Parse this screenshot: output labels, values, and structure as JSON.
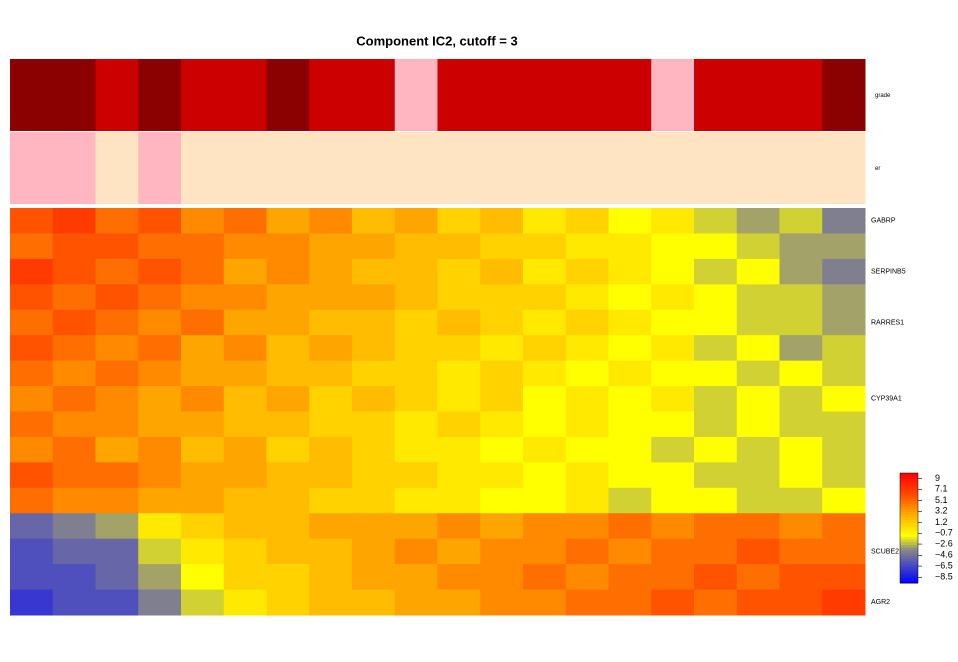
{
  "chart_data": {
    "type": "heatmap",
    "title": "Component IC2, cutoff = 3",
    "annotations": [
      {
        "name": "grade",
        "values": [
          3,
          3,
          2,
          3,
          2,
          2,
          3,
          2,
          2,
          1,
          2,
          2,
          2,
          2,
          2,
          1,
          2,
          2,
          2,
          3
        ],
        "colors": {
          "1": "#ffb6c1",
          "2": "#cd0000",
          "3": "#8b0000"
        }
      },
      {
        "name": "er",
        "values": [
          1,
          1,
          0,
          1,
          0,
          0,
          0,
          0,
          0,
          0,
          0,
          0,
          0,
          0,
          0,
          0,
          0,
          0,
          0,
          0
        ],
        "colors": {
          "0": "#ffe4c4",
          "1": "#ffb6c1"
        }
      }
    ],
    "row_labels": [
      "GABRP",
      null,
      "SERPINB5",
      null,
      "RARRES1",
      null,
      null,
      "CYP39A1",
      null,
      null,
      null,
      null,
      null,
      "SCUBE2",
      null,
      "AGR2"
    ],
    "values": [
      [
        6,
        7,
        5,
        6,
        4,
        5,
        3,
        4,
        2,
        3,
        1,
        2,
        0,
        1,
        -1,
        0,
        -2,
        -3,
        -2,
        -4
      ],
      [
        5,
        6,
        6,
        5,
        5,
        4,
        4,
        3,
        3,
        2,
        2,
        1,
        1,
        0,
        0,
        -1,
        -1,
        -2,
        -3,
        -3
      ],
      [
        7,
        6,
        5,
        6,
        5,
        3,
        4,
        3,
        2,
        2,
        1,
        2,
        0,
        1,
        0,
        -1,
        -2,
        -1,
        -3,
        -4
      ],
      [
        6,
        5,
        6,
        5,
        4,
        4,
        3,
        3,
        3,
        2,
        1,
        1,
        1,
        0,
        -1,
        0,
        -1,
        -2,
        -2,
        -3
      ],
      [
        5,
        6,
        5,
        4,
        5,
        3,
        3,
        2,
        2,
        1,
        2,
        1,
        0,
        1,
        0,
        -1,
        -1,
        -2,
        -2,
        -3
      ],
      [
        6,
        5,
        4,
        5,
        3,
        4,
        2,
        3,
        2,
        1,
        1,
        0,
        1,
        0,
        -1,
        0,
        -2,
        -1,
        -3,
        -2
      ],
      [
        5,
        4,
        5,
        4,
        3,
        3,
        2,
        2,
        1,
        1,
        0,
        1,
        0,
        -1,
        0,
        -1,
        -1,
        -2,
        -1,
        -2
      ],
      [
        4,
        5,
        4,
        3,
        4,
        2,
        3,
        1,
        2,
        1,
        0,
        1,
        -1,
        0,
        -1,
        0,
        -2,
        -1,
        -2,
        -1
      ],
      [
        5,
        4,
        4,
        3,
        3,
        2,
        2,
        1,
        1,
        0,
        1,
        0,
        -1,
        0,
        -1,
        -1,
        -2,
        -1,
        -2,
        -2
      ],
      [
        4,
        5,
        3,
        4,
        2,
        3,
        1,
        2,
        1,
        0,
        0,
        -1,
        0,
        -1,
        -1,
        -2,
        -1,
        -2,
        -1,
        -2
      ],
      [
        6,
        5,
        5,
        4,
        3,
        3,
        2,
        2,
        1,
        1,
        0,
        0,
        -1,
        0,
        -1,
        -1,
        -2,
        -2,
        -1,
        -2
      ],
      [
        5,
        4,
        4,
        3,
        3,
        2,
        2,
        1,
        1,
        0,
        0,
        -1,
        -1,
        0,
        -2,
        -1,
        -1,
        -2,
        -2,
        -1
      ],
      [
        -5,
        -4,
        -3,
        0,
        1,
        2,
        2,
        3,
        3,
        3,
        4,
        3,
        4,
        4,
        5,
        4,
        5,
        5,
        4,
        5
      ],
      [
        -6,
        -5,
        -5,
        -2,
        0,
        1,
        2,
        2,
        3,
        4,
        3,
        4,
        4,
        5,
        4,
        5,
        5,
        6,
        5,
        5
      ],
      [
        -6,
        -6,
        -5,
        -3,
        -1,
        1,
        1,
        2,
        3,
        3,
        4,
        4,
        5,
        4,
        5,
        5,
        6,
        5,
        6,
        6
      ],
      [
        -7,
        -6,
        -6,
        -4,
        -2,
        0,
        1,
        2,
        2,
        3,
        3,
        4,
        4,
        5,
        5,
        6,
        5,
        6,
        6,
        7
      ]
    ],
    "colorscale": [
      [
        -9.5,
        "#0000ff"
      ],
      [
        -5.5,
        "#5a5ab4"
      ],
      [
        -3.5,
        "#8b8b83"
      ],
      [
        -1,
        "#ffff00"
      ],
      [
        3,
        "#ffa500"
      ],
      [
        6.5,
        "#ff4500"
      ],
      [
        10,
        "#ff0000"
      ]
    ],
    "zlim": [
      -9.5,
      10
    ],
    "zticks": [
      9,
      7.1,
      5.1,
      3.2,
      1.2,
      {
        "value": -0.7,
        "label": "−0.7"
      },
      {
        "value": -2.6,
        "label": "−2.6"
      },
      {
        "value": -4.6,
        "label": "−4.6"
      },
      {
        "value": -6.5,
        "label": "−6.5"
      },
      {
        "value": -8.5,
        "label": "−8.5"
      }
    ]
  }
}
